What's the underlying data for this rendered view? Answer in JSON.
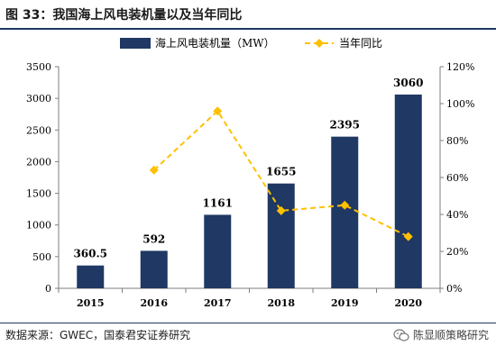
{
  "header": {
    "title": "图 33：我国海上风电装机量以及当年同比"
  },
  "footer": {
    "source": "数据来源：GWEC，国泰君安证券研究",
    "brand": "陈显顺策略研究",
    "brand_icon": "wechat-icon"
  },
  "colors": {
    "bar": "#1f3864",
    "line": "#ffc000",
    "axis": "#7f7f7f"
  },
  "chart_data": {
    "type": "bar",
    "categories": [
      "2015",
      "2016",
      "2017",
      "2018",
      "2019",
      "2020"
    ],
    "series": [
      {
        "name": "海上风电装机量（MW）",
        "type": "bar",
        "axis": "left",
        "values": [
          360.5,
          592,
          1161,
          1655,
          2395,
          3060
        ],
        "labels": [
          "360.5",
          "592",
          "1161",
          "1655",
          "2395",
          "3060"
        ]
      },
      {
        "name": "当年同比",
        "type": "line",
        "axis": "right",
        "values": [
          null,
          64,
          96,
          42,
          45,
          28
        ]
      }
    ],
    "y_left": {
      "lim": [
        0,
        3500
      ],
      "ticks": [
        "0",
        "500",
        "1000",
        "1500",
        "2000",
        "2500",
        "3000",
        "3500"
      ]
    },
    "y_right": {
      "lim": [
        0,
        120
      ],
      "ticks": [
        "0%",
        "20%",
        "40%",
        "60%",
        "80%",
        "100%",
        "120%"
      ]
    },
    "legend_position": "top-center",
    "grid": false
  }
}
